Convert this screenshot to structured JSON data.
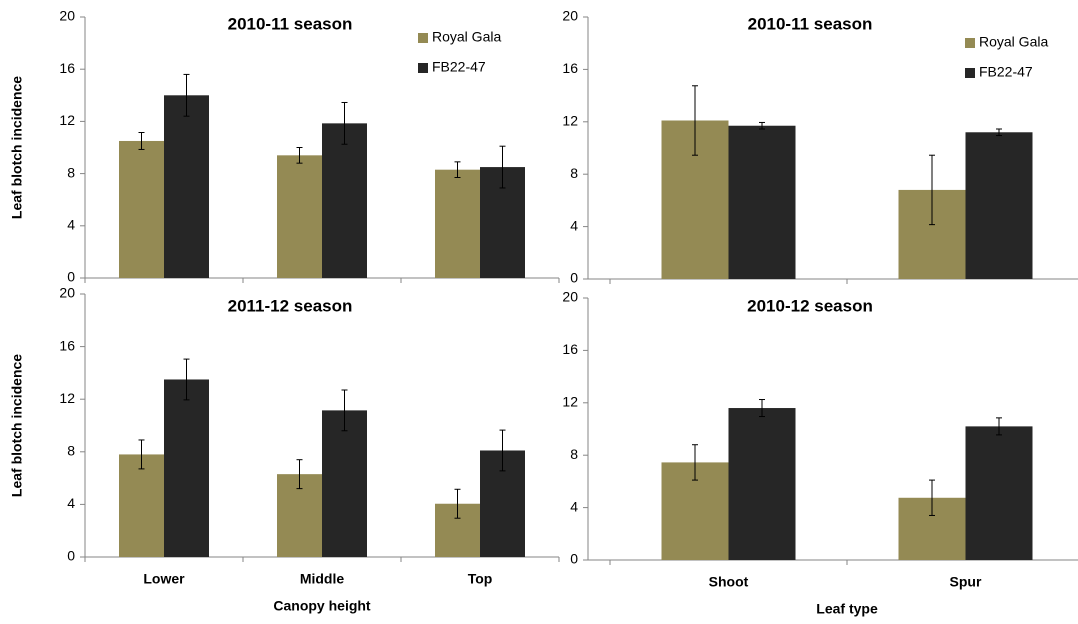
{
  "chart_data": [
    {
      "type": "bar",
      "title": "2010-11 season",
      "ylabel": "Leaf blotch incidence",
      "categories": [
        null,
        null,
        null
      ],
      "series": [
        {
          "name": "Royal Gala",
          "color": "#948a54",
          "values": [
            10.5,
            9.4,
            8.3
          ],
          "errors": [
            0.65,
            0.6,
            0.6
          ]
        },
        {
          "name": "FB22-47",
          "color": "#262626",
          "values": [
            14,
            11.85,
            8.5
          ],
          "errors": [
            1.6,
            1.6,
            1.6
          ]
        }
      ],
      "ylim": [
        0,
        20
      ],
      "yticks": [
        0,
        4,
        8,
        12,
        16,
        20
      ],
      "legend": "upper right"
    },
    {
      "type": "bar",
      "title": "2010-11 season",
      "categories": [
        null,
        null
      ],
      "series": [
        {
          "name": "Royal Gala",
          "color": "#948a54",
          "values": [
            12.1,
            6.8
          ],
          "errors": [
            2.65,
            2.65
          ]
        },
        {
          "name": "FB22-47",
          "color": "#262626",
          "values": [
            11.7,
            11.2
          ],
          "errors": [
            0.25,
            0.25
          ]
        }
      ],
      "ylim": [
        0,
        20
      ],
      "yticks": [
        0,
        4,
        8,
        12,
        16,
        20
      ],
      "legend": "upper right"
    },
    {
      "type": "bar",
      "title": "2011-12 season",
      "ylabel": "Leaf blotch incidence",
      "xlabel": "Canopy height",
      "categories": [
        "Lower",
        "Middle",
        "Top"
      ],
      "series": [
        {
          "color": "#948a54",
          "values": [
            7.8,
            6.3,
            4.05
          ],
          "errors": [
            1.1,
            1.1,
            1.1
          ]
        },
        {
          "color": "#262626",
          "values": [
            13.5,
            11.15,
            8.1
          ],
          "errors": [
            1.55,
            1.55,
            1.55
          ]
        }
      ],
      "ylim": [
        0,
        20
      ],
      "yticks": [
        0,
        4,
        8,
        12,
        16,
        20
      ]
    },
    {
      "type": "bar",
      "title": "2010-12 season",
      "xlabel": "Leaf type",
      "categories": [
        "Shoot",
        "Spur"
      ],
      "series": [
        {
          "color": "#948a54",
          "values": [
            7.45,
            4.75
          ],
          "errors": [
            1.35,
            1.35
          ]
        },
        {
          "color": "#262626",
          "values": [
            11.6,
            10.2
          ],
          "errors": [
            0.65,
            0.65
          ]
        }
      ],
      "ylim": [
        0,
        20
      ],
      "yticks": [
        0,
        4,
        8,
        12,
        16,
        20
      ]
    }
  ]
}
